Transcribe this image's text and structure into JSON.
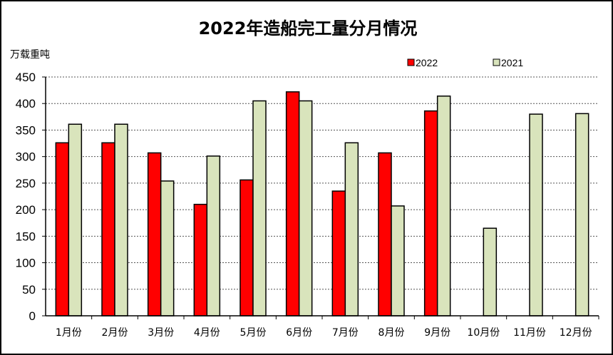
{
  "chart_data": {
    "type": "bar",
    "title": "2022年造船完工量分月情况",
    "ylabel": "万载重吨",
    "xlabel": "",
    "ylim": [
      0,
      450
    ],
    "yticks": [
      0,
      50,
      100,
      150,
      200,
      250,
      300,
      350,
      400,
      450
    ],
    "grid": true,
    "legend_position": "top-right",
    "categories": [
      "1月份",
      "2月份",
      "3月份",
      "4月份",
      "5月份",
      "6月份",
      "7月份",
      "8月份",
      "9月份",
      "10月份",
      "11月份",
      "12月份"
    ],
    "series": [
      {
        "name": "2022",
        "color": "#ff0000",
        "values": [
          326,
          326,
          307,
          210,
          256,
          422,
          235,
          307,
          386,
          null,
          null,
          null
        ]
      },
      {
        "name": "2021",
        "color": "#d9e4bc",
        "values": [
          361,
          361,
          254,
          301,
          405,
          405,
          326,
          207,
          414,
          165,
          380,
          381
        ]
      }
    ]
  }
}
